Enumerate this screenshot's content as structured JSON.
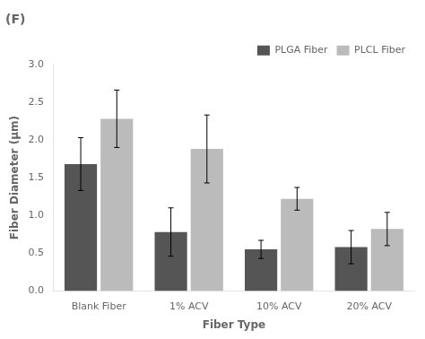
{
  "chart_data": {
    "type": "bar",
    "title": "(F)",
    "xlabel": "Fiber Type",
    "ylabel": "Fiber Diameter (μm)",
    "categories": [
      "Blank Fiber",
      "1% ACV",
      "10% ACV",
      "20% ACV"
    ],
    "series": [
      {
        "name": "PLGA Fiber",
        "color": "#555555",
        "values": [
          1.68,
          0.78,
          0.55,
          0.58
        ],
        "errors": [
          0.35,
          0.32,
          0.12,
          0.22
        ]
      },
      {
        "name": "PLCL Fiber",
        "color": "#bbbbbb",
        "values": [
          2.28,
          1.88,
          1.22,
          0.82
        ],
        "errors": [
          0.38,
          0.45,
          0.15,
          0.22
        ]
      }
    ],
    "ylim": [
      0,
      3
    ],
    "yticks": [
      {
        "value": 0,
        "label": "0.0"
      },
      0.5,
      {
        "value": 1.0,
        "label": "1.0"
      },
      1.5,
      {
        "value": 2.0,
        "label": "2.0"
      },
      2.5,
      {
        "value": 3.0,
        "label": "3.0"
      }
    ],
    "grid": false,
    "legend": "upper right"
  }
}
